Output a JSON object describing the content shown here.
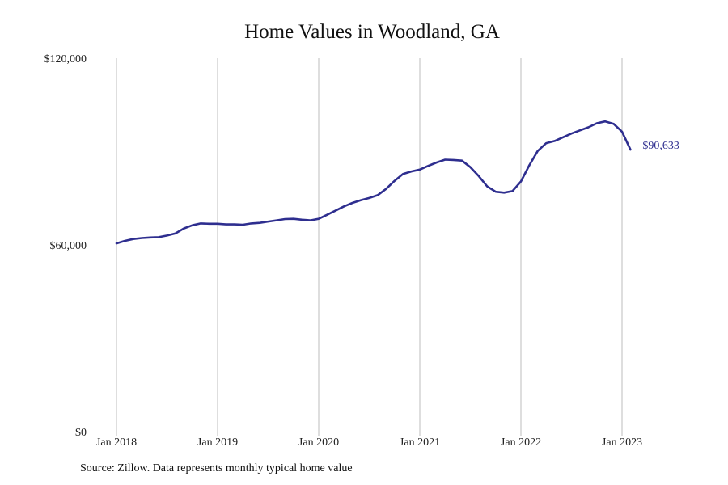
{
  "chart_data": {
    "type": "line",
    "title": "Home Values in Woodland, GA",
    "xlabel": "",
    "ylabel": "",
    "x_tick_labels": [
      "Jan 2018",
      "Jan 2019",
      "Jan 2020",
      "Jan 2021",
      "Jan 2022",
      "Jan 2023"
    ],
    "y_tick_labels": [
      "$0",
      "$60,000",
      "$120,000"
    ],
    "y_ticks": [
      0,
      60000,
      120000
    ],
    "ylim": [
      0,
      120000
    ],
    "grid": "vertical lines at x ticks",
    "line_color": "#2e2e8f",
    "end_label": "$90,633",
    "series": [
      {
        "x": [
          "2018-01",
          "2018-02",
          "2018-03",
          "2018-04",
          "2018-05",
          "2018-06",
          "2018-07",
          "2018-08",
          "2018-09",
          "2018-10",
          "2018-11",
          "2018-12",
          "2019-01",
          "2019-02",
          "2019-03",
          "2019-04",
          "2019-05",
          "2019-06",
          "2019-07",
          "2019-08",
          "2019-09",
          "2019-10",
          "2019-11",
          "2019-12",
          "2020-01",
          "2020-02",
          "2020-03",
          "2020-04",
          "2020-05",
          "2020-06",
          "2020-07",
          "2020-08",
          "2020-09",
          "2020-10",
          "2020-11",
          "2020-12",
          "2021-01",
          "2021-02",
          "2021-03",
          "2021-04",
          "2021-05",
          "2021-06",
          "2021-07",
          "2021-08",
          "2021-09",
          "2021-10",
          "2021-11",
          "2021-12",
          "2022-01",
          "2022-02",
          "2022-03",
          "2022-04",
          "2022-05",
          "2022-06",
          "2022-07",
          "2022-08",
          "2022-09",
          "2022-10",
          "2022-11",
          "2022-12",
          "2023-01",
          "2023-02"
        ],
        "values": [
          60500,
          61300,
          61900,
          62200,
          62400,
          62500,
          63000,
          63700,
          65300,
          66300,
          66900,
          66800,
          66800,
          66600,
          66600,
          66500,
          66900,
          67100,
          67500,
          67900,
          68300,
          68400,
          68100,
          67900,
          68400,
          69700,
          71000,
          72400,
          73500,
          74400,
          75100,
          76000,
          78000,
          80600,
          82800,
          83600,
          84200,
          85400,
          86500,
          87400,
          87300,
          87100,
          85000,
          82100,
          78800,
          77100,
          76800,
          77300,
          80400,
          85600,
          90200,
          92700,
          93400,
          94600,
          95800,
          96800,
          97800,
          99100,
          99700,
          98900,
          96400,
          90633
        ]
      }
    ]
  },
  "footer": {
    "source": "Source: Zillow. Data represents monthly typical home value"
  }
}
